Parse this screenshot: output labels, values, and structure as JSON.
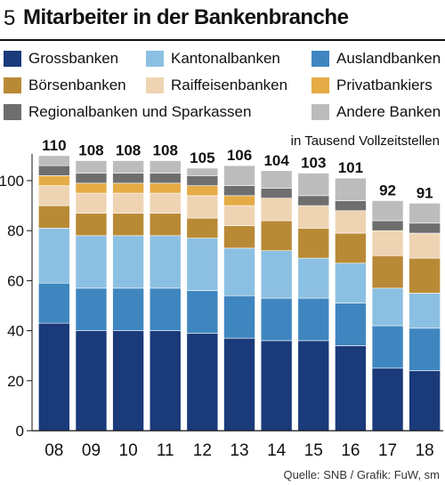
{
  "figure_number": "5",
  "title": "Mitarbeiter in der Bankenbranche",
  "source": "Quelle: SNB / Grafik: FuW, sm",
  "chart_data": {
    "type": "bar",
    "stacked": true,
    "title": "Mitarbeiter in der Bankenbranche",
    "ylabel": "",
    "unit_note": "in Tausend Vollzeitstellen",
    "categories": [
      "08",
      "09",
      "10",
      "11",
      "12",
      "13",
      "14",
      "15",
      "16",
      "17",
      "18"
    ],
    "totals": [
      110,
      108,
      108,
      108,
      105,
      106,
      104,
      103,
      101,
      92,
      91
    ],
    "ylim": [
      0,
      110
    ],
    "yticks": [
      0,
      20,
      40,
      60,
      80,
      100
    ],
    "grid": false,
    "legend_position": "top",
    "series": [
      {
        "name": "Grossbanken",
        "color": "#1a3a7a",
        "values": [
          43,
          40,
          40,
          40,
          39,
          37,
          36,
          36,
          34,
          25,
          24
        ]
      },
      {
        "name": "Auslandbanken",
        "color": "#3f86c0",
        "values": [
          16,
          17,
          17,
          17,
          17,
          17,
          17,
          17,
          17,
          17,
          17
        ]
      },
      {
        "name": "Kantonalbanken",
        "color": "#8cc0e2",
        "values": [
          22,
          21,
          21,
          21,
          21,
          19,
          19,
          16,
          16,
          15,
          14
        ]
      },
      {
        "name": "Börsenbanken",
        "color": "#b98a36",
        "values": [
          9,
          9,
          9,
          9,
          8,
          9,
          12,
          12,
          12,
          13,
          14
        ]
      },
      {
        "name": "Raiffeisenbanken",
        "color": "#efd4b3",
        "values": [
          8,
          8,
          8,
          8,
          9,
          8,
          9,
          9,
          9,
          10,
          10
        ]
      },
      {
        "name": "Privatbankiers",
        "color": "#e5ab45",
        "values": [
          4,
          4,
          4,
          4,
          4,
          4,
          0,
          0,
          0,
          0,
          0
        ]
      },
      {
        "name": "Regionalbanken und Sparkassen",
        "color": "#6e6e6e",
        "values": [
          4,
          4,
          4,
          4,
          4,
          4,
          4,
          4,
          4,
          4,
          4
        ]
      },
      {
        "name": "Andere Banken",
        "color": "#bcbcbc",
        "values": [
          4,
          5,
          5,
          5,
          3,
          8,
          7,
          9,
          9,
          8,
          8
        ]
      }
    ]
  }
}
